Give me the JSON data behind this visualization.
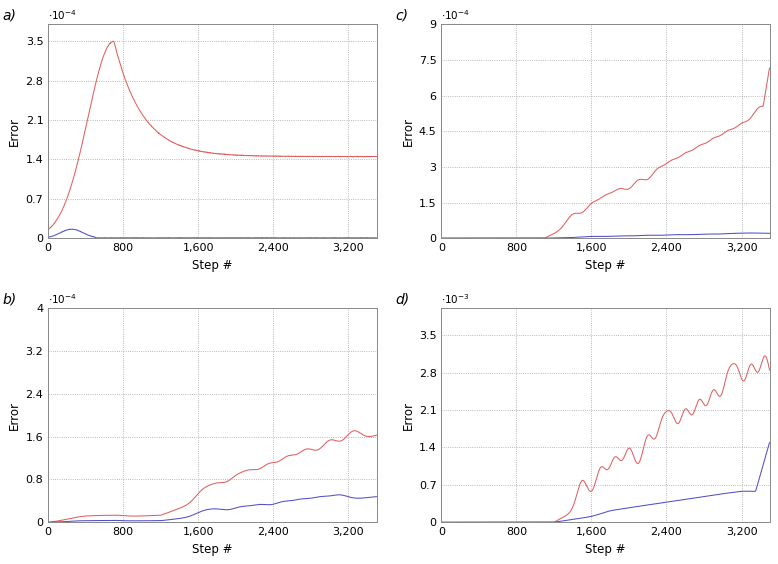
{
  "panels": [
    {
      "label": "a)",
      "ylim": [
        0,
        0.00038
      ],
      "yticks": [
        0,
        7e-05,
        0.00014,
        0.00021,
        0.00028,
        0.00035
      ],
      "ytick_labels": [
        "0",
        "0.7",
        "1.4",
        "2.1",
        "2.8",
        "3.5"
      ],
      "exp": -4,
      "xticks": [
        0,
        800,
        1600,
        2400,
        3200
      ],
      "xtick_labels": [
        "0",
        "800",
        "1,600",
        "2,400",
        "3,200"
      ],
      "xlim": [
        0,
        3500
      ]
    },
    {
      "label": "b)",
      "ylim": [
        0,
        0.0004
      ],
      "yticks": [
        0,
        8e-05,
        0.00016,
        0.00024,
        0.00032,
        0.0004
      ],
      "ytick_labels": [
        "0",
        "0.8",
        "1.6",
        "2.4",
        "3.2",
        "4"
      ],
      "exp": -4,
      "xticks": [
        0,
        800,
        1600,
        2400,
        3200
      ],
      "xtick_labels": [
        "0",
        "800",
        "1,600",
        "2,400",
        "3,200"
      ],
      "xlim": [
        0,
        3500
      ]
    },
    {
      "label": "c)",
      "ylim": [
        0,
        0.0009
      ],
      "yticks": [
        0,
        0.00015,
        0.0003,
        0.00045,
        0.0006,
        0.00075,
        0.0009
      ],
      "ytick_labels": [
        "0",
        "1.5",
        "3",
        "4.5",
        "6",
        "7.5",
        "9"
      ],
      "exp": -4,
      "xticks": [
        0,
        800,
        1600,
        2400,
        3200
      ],
      "xtick_labels": [
        "0",
        "800",
        "1,600",
        "2,400",
        "3,200"
      ],
      "xlim": [
        0,
        3500
      ]
    },
    {
      "label": "d)",
      "ylim": [
        0,
        0.004
      ],
      "yticks": [
        0,
        0.0007,
        0.0014,
        0.0021,
        0.0028,
        0.0035
      ],
      "ytick_labels": [
        "0",
        "0.7",
        "1.4",
        "2.1",
        "2.8",
        "3.5"
      ],
      "exp": -3,
      "xticks": [
        0,
        800,
        1600,
        2400,
        3200
      ],
      "xtick_labels": [
        "0",
        "800",
        "1,600",
        "2,400",
        "3,200"
      ],
      "xlim": [
        0,
        3500
      ]
    }
  ],
  "red_color": "#e06060",
  "blue_color": "#5050c8",
  "bg_color": "#ffffff",
  "grid_color": "#999999",
  "linewidth": 0.75,
  "n_steps": 3500,
  "xlabel": "Step #",
  "ylabel": "Error"
}
